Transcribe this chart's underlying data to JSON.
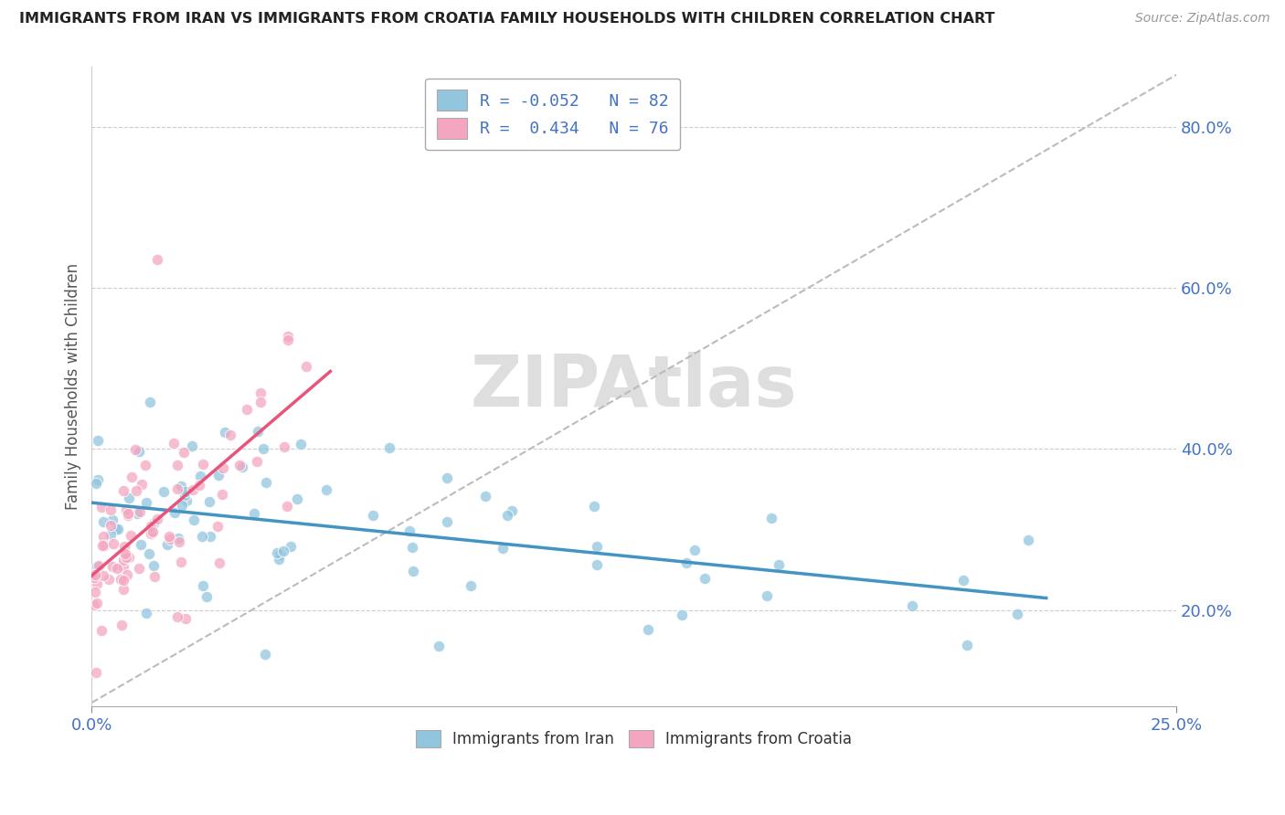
{
  "title": "IMMIGRANTS FROM IRAN VS IMMIGRANTS FROM CROATIA FAMILY HOUSEHOLDS WITH CHILDREN CORRELATION CHART",
  "source": "Source: ZipAtlas.com",
  "ylabel": "Family Households with Children",
  "ytick_vals": [
    0.2,
    0.4,
    0.6,
    0.8
  ],
  "ytick_labels": [
    "20.0%",
    "40.0%",
    "60.0%",
    "80.0%"
  ],
  "xtick_vals": [
    0.0,
    0.25
  ],
  "xtick_labels": [
    "0.0%",
    "25.0%"
  ],
  "xlim": [
    0.0,
    0.25
  ],
  "ylim": [
    0.08,
    0.875
  ],
  "iran_color": "#92c5de",
  "iran_line_color": "#4393c3",
  "croatia_color": "#f4a6c0",
  "croatia_line_color": "#e8547a",
  "iran_R": -0.052,
  "iran_N": 82,
  "croatia_R": 0.434,
  "croatia_N": 76,
  "legend_label_iran": "Immigrants from Iran",
  "legend_label_croatia": "Immigrants from Croatia",
  "background_color": "#ffffff",
  "grid_color": "#cccccc",
  "title_color": "#222222",
  "axis_tick_color": "#4472c4",
  "ref_line_color": "#bbbbbb",
  "watermark_color": "#dedede"
}
